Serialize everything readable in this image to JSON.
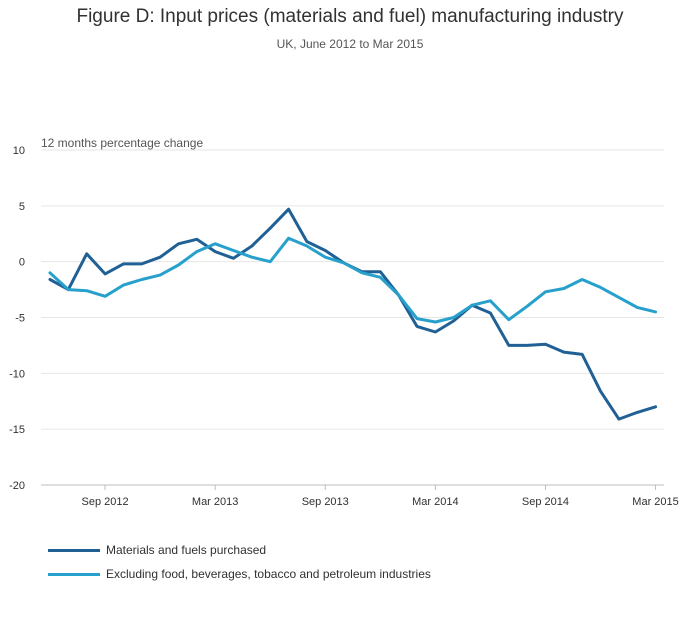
{
  "chart_data": {
    "type": "line",
    "title": "Figure D: Input prices (materials and fuel) manufacturing industry",
    "subtitle": "UK, June 2012 to Mar 2015",
    "ylabel": "12 months percentage change",
    "xlabel": "",
    "ylim": [
      -20,
      10
    ],
    "yticks": [
      10,
      5,
      0,
      -5,
      -10,
      -15,
      -20
    ],
    "x": [
      "Jun 2012",
      "Jul 2012",
      "Aug 2012",
      "Sep 2012",
      "Oct 2012",
      "Nov 2012",
      "Dec 2012",
      "Jan 2013",
      "Feb 2013",
      "Mar 2013",
      "Apr 2013",
      "May 2013",
      "Jun 2013",
      "Jul 2013",
      "Aug 2013",
      "Sep 2013",
      "Oct 2013",
      "Nov 2013",
      "Dec 2013",
      "Jan 2014",
      "Feb 2014",
      "Mar 2014",
      "Apr 2014",
      "May 2014",
      "Jun 2014",
      "Jul 2014",
      "Aug 2014",
      "Sep 2014",
      "Oct 2014",
      "Nov 2014",
      "Dec 2014",
      "Jan 2015",
      "Feb 2015",
      "Mar 2015"
    ],
    "xtick_labels": [
      {
        "at": "Sep 2012",
        "label": "Sep 2012"
      },
      {
        "at": "Mar 2013",
        "label": "Mar 2013"
      },
      {
        "at": "Sep 2013",
        "label": "Sep 2013"
      },
      {
        "at": "Mar 2014",
        "label": "Mar 2014"
      },
      {
        "at": "Sep 2014",
        "label": "Sep 2014"
      },
      {
        "at": "Mar 2015",
        "label": "Mar 2015"
      }
    ],
    "series": [
      {
        "name": "Materials and fuels purchased",
        "color": "#206095",
        "values": [
          -1.6,
          -2.5,
          0.7,
          -1.1,
          -0.2,
          -0.2,
          0.4,
          1.6,
          2.0,
          0.9,
          0.3,
          1.4,
          3.0,
          4.7,
          1.8,
          1.0,
          -0.1,
          -0.9,
          -0.9,
          -3.0,
          -5.8,
          -6.3,
          -5.3,
          -3.9,
          -4.6,
          -7.5,
          -7.5,
          -7.4,
          -8.1,
          -8.3,
          -11.6,
          -14.1,
          -13.5,
          -13.0
        ]
      },
      {
        "name": "Excluding food, beverages, tobacco and petroleum industries",
        "color": "#27a0cc",
        "values": [
          -1.0,
          -2.5,
          -2.6,
          -3.1,
          -2.1,
          -1.6,
          -1.2,
          -0.3,
          0.9,
          1.6,
          1.0,
          0.4,
          0.0,
          2.1,
          1.4,
          0.4,
          -0.1,
          -1.0,
          -1.4,
          -3.0,
          -5.1,
          -5.4,
          -5.0,
          -3.9,
          -3.5,
          -5.2,
          -4.0,
          -2.7,
          -2.4,
          -1.6,
          -2.3,
          -3.2,
          -4.1,
          -4.5
        ]
      }
    ]
  }
}
